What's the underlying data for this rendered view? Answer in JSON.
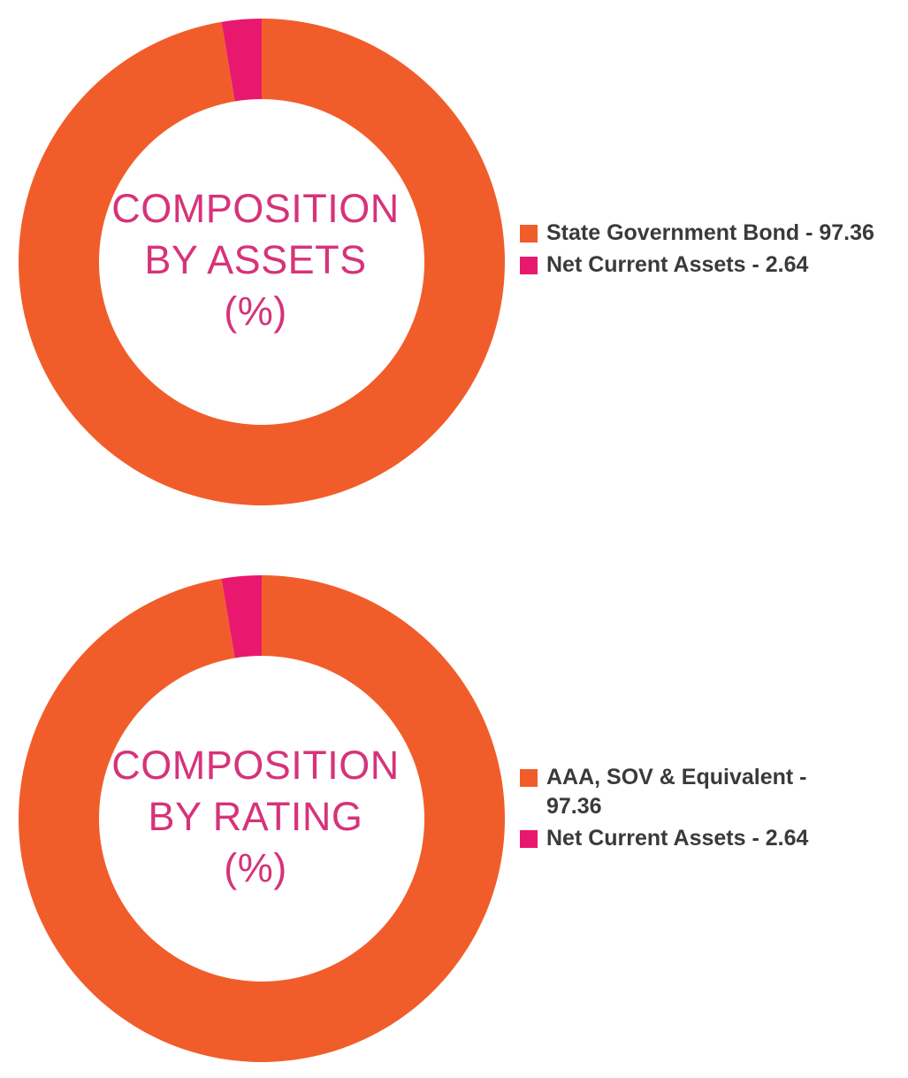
{
  "chart_data": [
    {
      "type": "pie",
      "title_lines": [
        "COMPOSITION",
        "BY ASSETS",
        "(%)"
      ],
      "legend_position": "right",
      "slices": [
        {
          "label": "State Government Bond - 97.36",
          "name": "State Government Bond",
          "value": 97.36,
          "color": "#f15d2a"
        },
        {
          "label": "Net Current Assets - 2.64",
          "name": "Net Current Assets",
          "value": 2.64,
          "color": "#e8186e"
        }
      ]
    },
    {
      "type": "pie",
      "title_lines": [
        "COMPOSITION",
        "BY RATING",
        "(%)"
      ],
      "legend_position": "right",
      "slices": [
        {
          "label": "AAA, SOV & Equivalent - 97.36",
          "name": "AAA, SOV & Equivalent",
          "value": 97.36,
          "color": "#f15d2a"
        },
        {
          "label": "Net Current Assets - 2.64",
          "name": "Net Current Assets",
          "value": 2.64,
          "color": "#e8186e"
        }
      ]
    }
  ]
}
